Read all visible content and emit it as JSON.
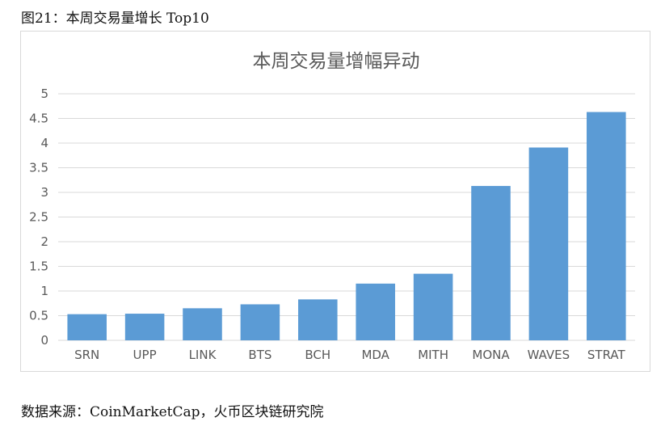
{
  "caption": "图21：本周交易量增长 Top10",
  "source": "数据来源：CoinMarketCap，火币区块链研究院",
  "chart_data": {
    "type": "bar",
    "title": "本周交易量增幅异动",
    "categories": [
      "SRN",
      "UPP",
      "LINK",
      "BTS",
      "BCH",
      "MDA",
      "MITH",
      "MONA",
      "WAVES",
      "STRAT"
    ],
    "values": [
      0.53,
      0.54,
      0.65,
      0.73,
      0.83,
      1.15,
      1.35,
      3.13,
      3.91,
      4.63
    ],
    "ylim": [
      0,
      5
    ],
    "yticks": [
      "0",
      "0.5",
      "1",
      "1.5",
      "2",
      "2.5",
      "3",
      "3.5",
      "4",
      "4.5",
      "5"
    ],
    "ytick_values": [
      0,
      0.5,
      1,
      1.5,
      2,
      2.5,
      3,
      3.5,
      4,
      4.5,
      5
    ],
    "grid": true,
    "legend": "none",
    "bar_color": "#5b9bd5"
  }
}
